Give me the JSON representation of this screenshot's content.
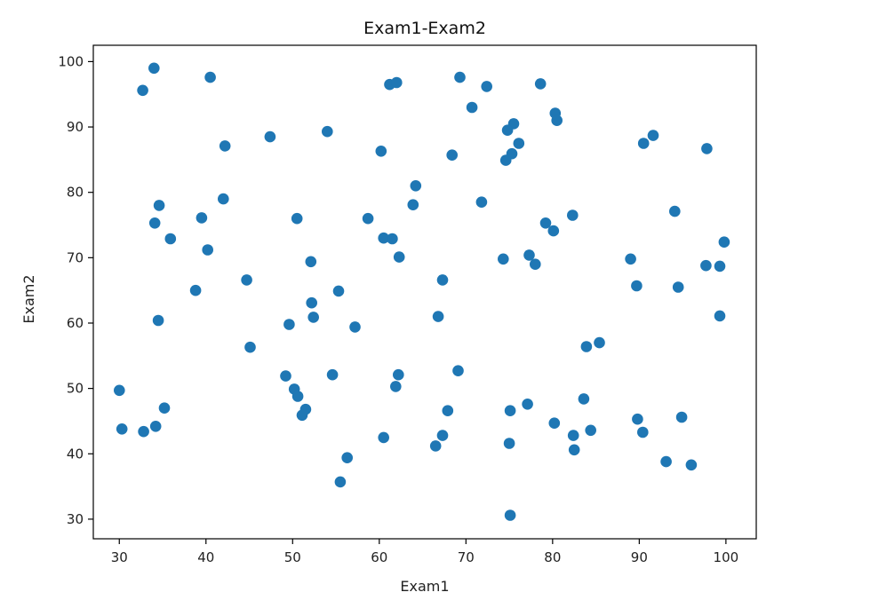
{
  "chart_data": {
    "type": "scatter",
    "title": "Exam1-Exam2",
    "xlabel": "Exam1",
    "ylabel": "Exam2",
    "xlim": [
      27,
      103.5
    ],
    "ylim": [
      27,
      102.5
    ],
    "xticks": [
      30,
      40,
      50,
      60,
      70,
      80,
      90,
      100
    ],
    "yticks": [
      30,
      40,
      50,
      60,
      70,
      80,
      90,
      100
    ],
    "grid": false,
    "color": "#1f77b4",
    "points": [
      [
        34,
        99
      ],
      [
        32.7,
        95.6
      ],
      [
        40.5,
        97.6
      ],
      [
        61.2,
        96.5
      ],
      [
        62,
        96.8
      ],
      [
        69.3,
        97.6
      ],
      [
        72.4,
        96.2
      ],
      [
        78.6,
        96.6
      ],
      [
        70.7,
        93
      ],
      [
        80.3,
        92.1
      ],
      [
        80.5,
        91
      ],
      [
        75.5,
        90.5
      ],
      [
        74.8,
        89.5
      ],
      [
        54,
        89.3
      ],
      [
        47.4,
        88.5
      ],
      [
        91.6,
        88.7
      ],
      [
        90.5,
        87.5
      ],
      [
        97.8,
        86.7
      ],
      [
        42.2,
        87.1
      ],
      [
        60.2,
        86.3
      ],
      [
        68.4,
        85.7
      ],
      [
        75.3,
        85.9
      ],
      [
        76.1,
        87.5
      ],
      [
        74.6,
        84.9
      ],
      [
        64.2,
        81
      ],
      [
        34.6,
        78
      ],
      [
        42,
        79
      ],
      [
        63.9,
        78.1
      ],
      [
        71.8,
        78.5
      ],
      [
        94.1,
        77.1
      ],
      [
        82.3,
        76.5
      ],
      [
        39.5,
        76.1
      ],
      [
        34.1,
        75.3
      ],
      [
        50.5,
        76
      ],
      [
        58.7,
        76
      ],
      [
        79.2,
        75.3
      ],
      [
        80.1,
        74.1
      ],
      [
        35.9,
        72.9
      ],
      [
        60.5,
        73
      ],
      [
        61.5,
        72.9
      ],
      [
        99.8,
        72.4
      ],
      [
        40.2,
        71.2
      ],
      [
        62.3,
        70.1
      ],
      [
        77.3,
        70.4
      ],
      [
        74.3,
        69.8
      ],
      [
        78,
        69
      ],
      [
        52.1,
        69.4
      ],
      [
        89,
        69.8
      ],
      [
        97.7,
        68.8
      ],
      [
        99.3,
        68.7
      ],
      [
        44.7,
        66.6
      ],
      [
        67.3,
        66.6
      ],
      [
        89.7,
        65.7
      ],
      [
        94.5,
        65.5
      ],
      [
        38.8,
        65
      ],
      [
        55.3,
        64.9
      ],
      [
        52.2,
        63.1
      ],
      [
        52.4,
        60.9
      ],
      [
        66.8,
        61
      ],
      [
        99.3,
        61.1
      ],
      [
        34.5,
        60.4
      ],
      [
        49.6,
        59.8
      ],
      [
        57.2,
        59.4
      ],
      [
        83.9,
        56.4
      ],
      [
        85.4,
        57
      ],
      [
        45.1,
        56.3
      ],
      [
        69.1,
        52.7
      ],
      [
        62.2,
        52.1
      ],
      [
        49.2,
        51.9
      ],
      [
        54.6,
        52.1
      ],
      [
        61.9,
        50.3
      ],
      [
        30,
        49.7
      ],
      [
        50.2,
        49.9
      ],
      [
        50.6,
        48.8
      ],
      [
        83.6,
        48.4
      ],
      [
        35.2,
        47
      ],
      [
        51.5,
        46.8
      ],
      [
        67.9,
        46.6
      ],
      [
        75.1,
        46.6
      ],
      [
        77.1,
        47.6
      ],
      [
        51.1,
        45.9
      ],
      [
        89.8,
        45.3
      ],
      [
        94.9,
        45.6
      ],
      [
        80.2,
        44.7
      ],
      [
        34.2,
        44.2
      ],
      [
        30.3,
        43.8
      ],
      [
        32.8,
        43.4
      ],
      [
        84.4,
        43.6
      ],
      [
        90.4,
        43.3
      ],
      [
        67.3,
        42.8
      ],
      [
        82.4,
        42.8
      ],
      [
        60.5,
        42.5
      ],
      [
        75,
        41.6
      ],
      [
        66.5,
        41.2
      ],
      [
        82.5,
        40.6
      ],
      [
        56.3,
        39.4
      ],
      [
        93.1,
        38.8
      ],
      [
        96,
        38.3
      ],
      [
        55.5,
        35.7
      ],
      [
        75.1,
        30.6
      ]
    ]
  }
}
